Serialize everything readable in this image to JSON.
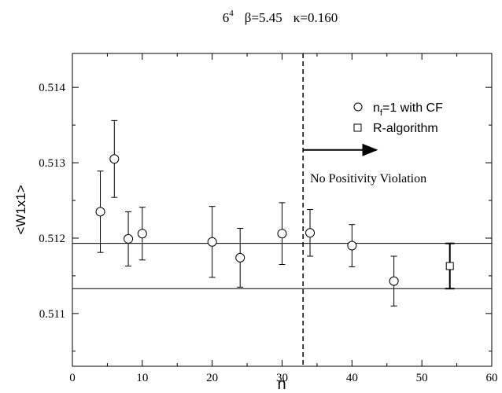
{
  "chart_data": {
    "type": "scatter",
    "title": {
      "lattice": "6",
      "lattice_exp": "4",
      "beta": "β=5.45",
      "kappa": "κ=0.160"
    },
    "xlabel": "n",
    "ylabel": "<W1x1>",
    "xlim": [
      0,
      60
    ],
    "ylim": [
      0.5103,
      0.51445
    ],
    "xticks": [
      0,
      10,
      20,
      30,
      40,
      50,
      60
    ],
    "xtick_labels": [
      "0",
      "10",
      "20",
      "30",
      "40",
      "50",
      "60"
    ],
    "yticks": [
      0.511,
      0.512,
      0.513,
      0.514
    ],
    "ytick_labels": [
      "0.511",
      "0.512",
      "0.513",
      "0.514"
    ],
    "grid": false,
    "legend_position": "top-right",
    "series": [
      {
        "name_main": "n",
        "name_sub": "f",
        "name_rest": "=1  with CF",
        "marker": "circle",
        "points": [
          {
            "x": 4,
            "y": 0.51235,
            "err": 0.00054
          },
          {
            "x": 6,
            "y": 0.51305,
            "err": 0.00051
          },
          {
            "x": 8,
            "y": 0.51199,
            "err": 0.00036
          },
          {
            "x": 10,
            "y": 0.51206,
            "err": 0.00035
          },
          {
            "x": 20,
            "y": 0.51195,
            "err": 0.00047
          },
          {
            "x": 24,
            "y": 0.51174,
            "err": 0.00039
          },
          {
            "x": 30,
            "y": 0.51206,
            "err": 0.00041
          },
          {
            "x": 34,
            "y": 0.51207,
            "err": 0.00031
          },
          {
            "x": 40,
            "y": 0.5119,
            "err": 0.00028
          },
          {
            "x": 46,
            "y": 0.51143,
            "err": 0.00033
          }
        ]
      },
      {
        "name": "R-algorithm",
        "marker": "square",
        "points": [
          {
            "x": 54,
            "y": 0.51163,
            "err": 0.0003
          }
        ]
      }
    ],
    "hlines": [
      0.51193,
      0.51133
    ],
    "vline": {
      "x": 33,
      "style": "dashed"
    },
    "annotation": {
      "text": "No Positivity Violation",
      "arrow_from_x": 33,
      "arrow_to_x": 43.5,
      "arrow_y": 0.51317,
      "text_x": 34,
      "text_y": 0.51274
    }
  }
}
